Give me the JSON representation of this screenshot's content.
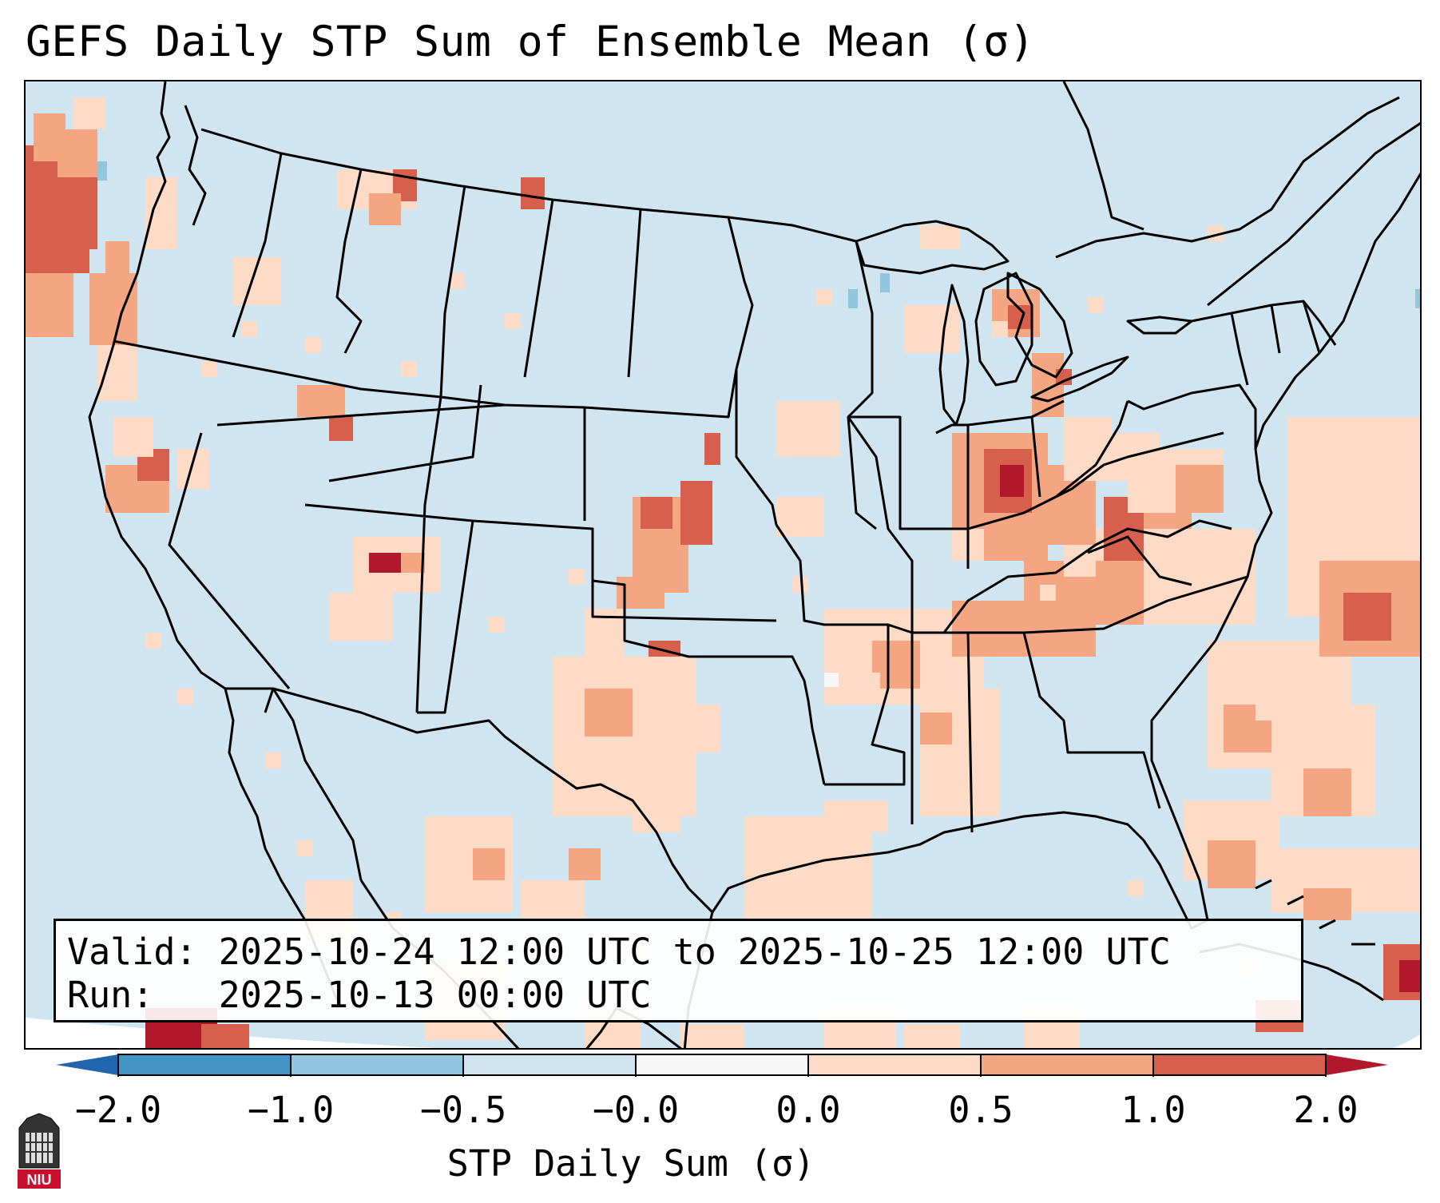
{
  "title": "GEFS Daily STP Sum of Ensemble Mean (σ)",
  "info": {
    "valid_label": "Valid:",
    "valid_value": "2025-10-24 12:00 UTC to 2025-10-25 12:00 UTC",
    "run_label": "Run:",
    "run_value": "2025-10-13 00:00 UTC"
  },
  "colorbar": {
    "label": "STP Daily Sum (σ)",
    "ticks": [
      "−2.0",
      "−1.0",
      "−0.5",
      "−0.0",
      "0.0",
      "0.5",
      "1.0",
      "2.0"
    ],
    "colors": [
      "#4393c3",
      "#92c5de",
      "#d1e5f0",
      "#f7f7f7",
      "#fddbc7",
      "#f4a582",
      "#d6604d"
    ],
    "under_color": "#2166ac",
    "over_color": "#b2182b"
  },
  "map": {
    "background_color": "#d1e5f0",
    "land_color": "#d1e5f0",
    "ocean_edge_color": "#ffffff",
    "line_color": "#000000"
  },
  "logo": {
    "text": "NIU",
    "color": "#c8102e"
  }
}
